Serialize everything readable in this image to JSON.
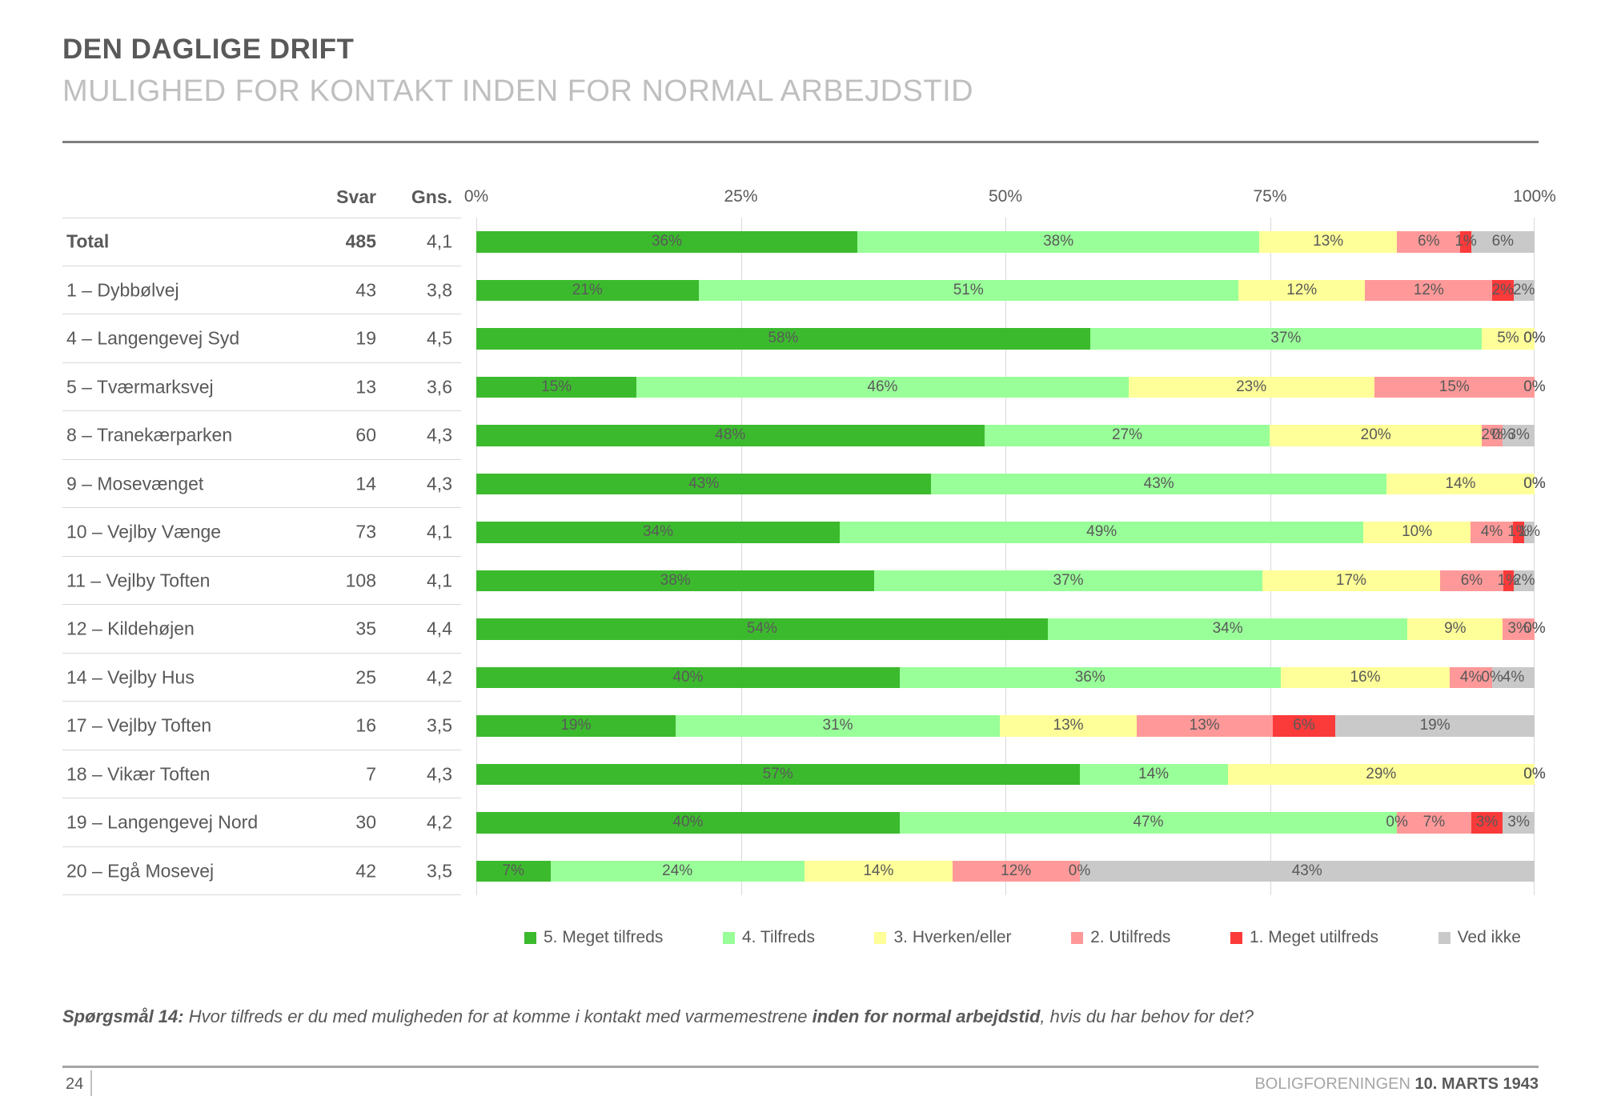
{
  "header": {
    "title": "DEN DAGLIGE DRIFT",
    "subtitle": "MULIGHED FOR KONTAKT INDEN FOR NORMAL ARBEJDSTID"
  },
  "table": {
    "col_svar": "Svar",
    "col_gns": "Gns."
  },
  "chart_data": {
    "type": "bar",
    "stacked": true,
    "orientation": "horizontal",
    "xlim": [
      0,
      100
    ],
    "axis_ticks": [
      "0%",
      "25%",
      "50%",
      "75%",
      "100%"
    ],
    "grid": true,
    "legend_position": "bottom",
    "series_names": [
      "5. Meget tilfreds",
      "4. Tilfreds",
      "3. Hverken/eller",
      "2. Utilfreds",
      "1. Meget utilfreds",
      "Ved ikke"
    ],
    "series_colors": [
      "#3cba2e",
      "#99ff99",
      "#ffff99",
      "#ff9999",
      "#fb3a3a",
      "#c9c9c9"
    ],
    "rows": [
      {
        "label": "Total",
        "svar": "485",
        "gns": "4,1",
        "bold": true,
        "values": [
          36,
          38,
          13,
          6,
          1,
          6
        ]
      },
      {
        "label": "1 – Dybbølvej",
        "svar": "43",
        "gns": "3,8",
        "bold": false,
        "values": [
          21,
          51,
          12,
          12,
          2,
          2
        ]
      },
      {
        "label": "4 – Langengevej Syd",
        "svar": "19",
        "gns": "4,5",
        "bold": false,
        "values": [
          58,
          37,
          5,
          0,
          0,
          0
        ]
      },
      {
        "label": "5 – Tværmarksvej",
        "svar": "13",
        "gns": "3,6",
        "bold": false,
        "values": [
          15,
          46,
          23,
          15,
          0,
          0
        ]
      },
      {
        "label": "8 – Tranekærparken",
        "svar": "60",
        "gns": "4,3",
        "bold": false,
        "values": [
          48,
          27,
          20,
          2,
          0,
          3
        ]
      },
      {
        "label": "9 – Mosevænget",
        "svar": "14",
        "gns": "4,3",
        "bold": false,
        "values": [
          43,
          43,
          14,
          0,
          0,
          0
        ]
      },
      {
        "label": "10 – Vejlby Vænge",
        "svar": "73",
        "gns": "4,1",
        "bold": false,
        "values": [
          34,
          49,
          10,
          4,
          1,
          1
        ]
      },
      {
        "label": "11 – Vejlby Toften",
        "svar": "108",
        "gns": "4,1",
        "bold": false,
        "values": [
          38,
          37,
          17,
          6,
          1,
          2
        ]
      },
      {
        "label": "12 – Kildehøjen",
        "svar": "35",
        "gns": "4,4",
        "bold": false,
        "values": [
          54,
          34,
          9,
          3,
          0,
          0
        ]
      },
      {
        "label": "14 – Vejlby Hus",
        "svar": "25",
        "gns": "4,2",
        "bold": false,
        "values": [
          40,
          36,
          16,
          4,
          0,
          4
        ]
      },
      {
        "label": "17 – Vejlby Toften",
        "svar": "16",
        "gns": "3,5",
        "bold": false,
        "values": [
          19,
          31,
          13,
          13,
          6,
          19
        ]
      },
      {
        "label": "18 – Vikær Toften",
        "svar": "7",
        "gns": "4,3",
        "bold": false,
        "values": [
          57,
          14,
          29,
          0,
          0,
          0
        ]
      },
      {
        "label": "19 – Langengevej Nord",
        "svar": "30",
        "gns": "4,2",
        "bold": false,
        "values": [
          40,
          47,
          0,
          7,
          3,
          3
        ]
      },
      {
        "label": "20 – Egå Mosevej",
        "svar": "42",
        "gns": "3,5",
        "bold": false,
        "values": [
          7,
          24,
          14,
          12,
          0,
          43
        ]
      }
    ]
  },
  "footnote": {
    "prefix": "Spørgsmål 14:",
    "text_1": " Hvor tilfreds er du med muligheden for at komme i kontakt med varmemestrene ",
    "bold": "inden for normal arbejdstid",
    "text_2": ", hvis du har behov for det?"
  },
  "footer": {
    "page": "24",
    "org": "BOLIGFORENINGEN",
    "date": "10. MARTS 1943"
  }
}
